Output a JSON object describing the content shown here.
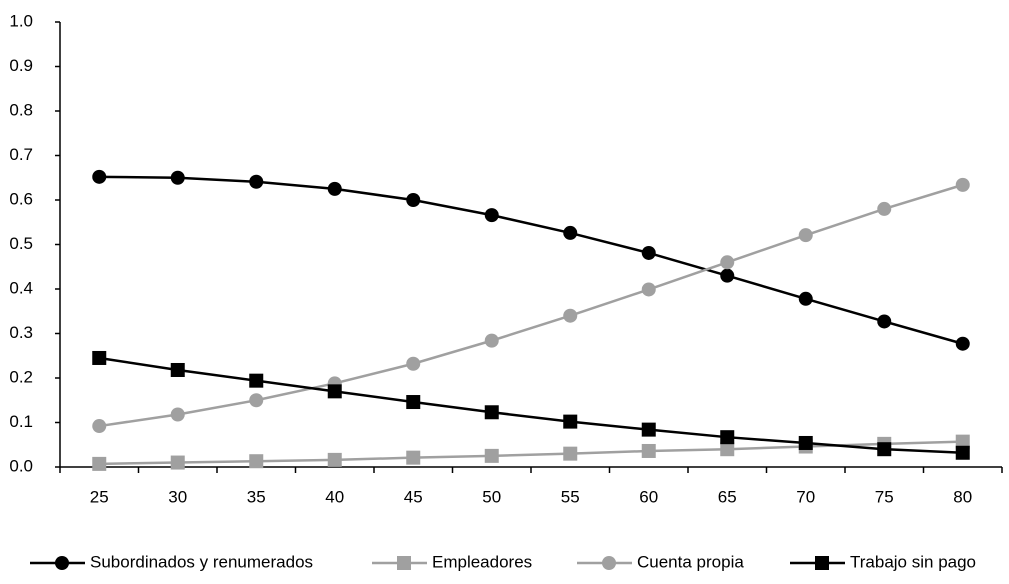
{
  "chart_data": {
    "type": "line",
    "categories": [
      "25",
      "30",
      "35",
      "40",
      "45",
      "50",
      "55",
      "60",
      "65",
      "70",
      "75",
      "80"
    ],
    "series": [
      {
        "name": "Subordinados y renumerados",
        "color": "#000000",
        "marker": "circle",
        "values": [
          0.652,
          0.65,
          0.641,
          0.625,
          0.6,
          0.566,
          0.526,
          0.481,
          0.43,
          0.378,
          0.327,
          0.277
        ]
      },
      {
        "name": "Empleadores",
        "color": "#a0a0a0",
        "marker": "square",
        "values": [
          0.007,
          0.01,
          0.013,
          0.016,
          0.021,
          0.025,
          0.03,
          0.036,
          0.04,
          0.046,
          0.052,
          0.057
        ]
      },
      {
        "name": "Cuenta propia",
        "color": "#a0a0a0",
        "marker": "circle",
        "values": [
          0.092,
          0.118,
          0.15,
          0.188,
          0.232,
          0.284,
          0.34,
          0.399,
          0.46,
          0.521,
          0.58,
          0.634
        ]
      },
      {
        "name": "Trabajo sin pago",
        "color": "#000000",
        "marker": "square",
        "values": [
          0.245,
          0.218,
          0.194,
          0.17,
          0.146,
          0.123,
          0.102,
          0.084,
          0.067,
          0.054,
          0.04,
          0.032
        ]
      }
    ],
    "ylim": [
      0,
      1
    ],
    "yticks": [
      {
        "value": 0,
        "label": "0.0"
      },
      0.1,
      0.2,
      0.3,
      0.4,
      0.5,
      0.6,
      0.7,
      0.8,
      0.9,
      {
        "value": 1,
        "label": "1.0"
      }
    ],
    "grid": false,
    "legend": "bottom"
  }
}
